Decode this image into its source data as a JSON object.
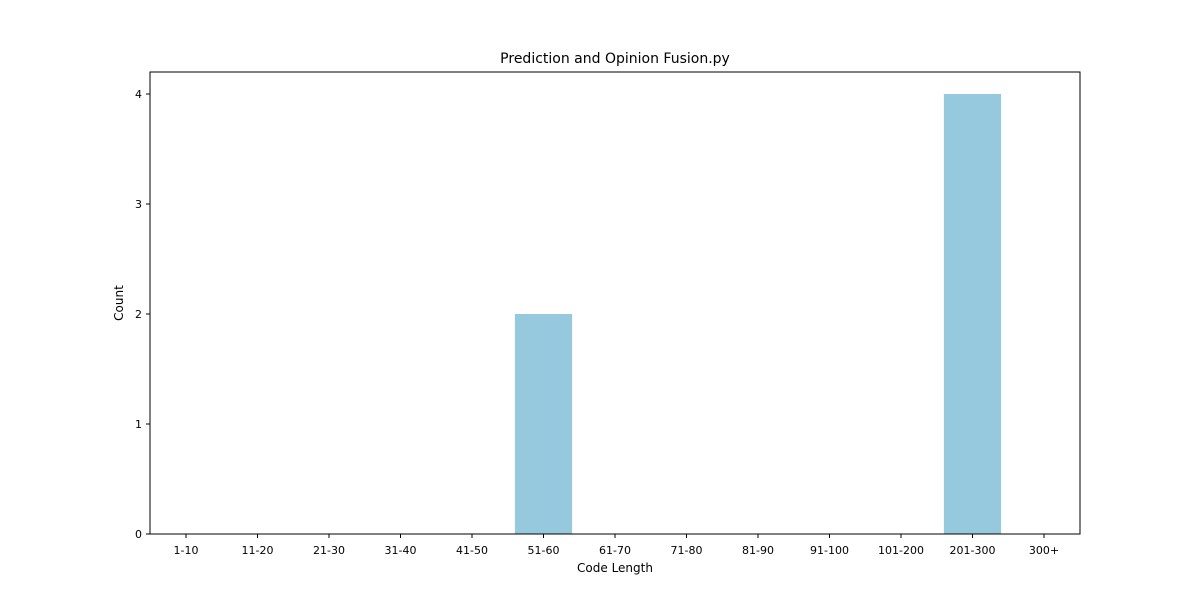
{
  "chart_data": {
    "type": "bar",
    "title": "Prediction and Opinion Fusion.py",
    "xlabel": "Code Length",
    "ylabel": "Count",
    "categories": [
      "1-10",
      "11-20",
      "21-30",
      "31-40",
      "41-50",
      "51-60",
      "61-70",
      "71-80",
      "81-90",
      "91-100",
      "101-200",
      "201-300",
      "300+"
    ],
    "values": [
      0,
      0,
      0,
      0,
      0,
      2,
      0,
      0,
      0,
      0,
      0,
      4,
      0
    ],
    "ylim": [
      0,
      4.2
    ],
    "yticks": [
      0,
      1,
      2,
      3,
      4
    ],
    "grid": false,
    "legend": "none",
    "bar_color": "#96c9dd"
  }
}
